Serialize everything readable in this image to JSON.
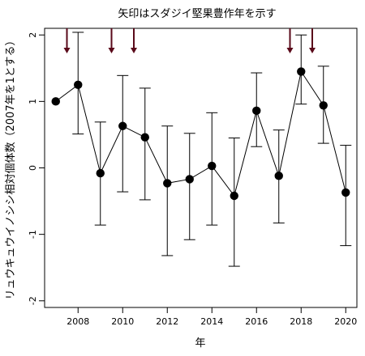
{
  "chart_data": {
    "type": "line",
    "title": "矢印はスダジイ堅果豊作年を示す",
    "xlabel": "年",
    "ylabel": "リュウキュウイノシシ相対個体数（2007年を1とする）",
    "xlim": [
      2006.5,
      2020.5
    ],
    "ylim": [
      -2.1,
      2.1
    ],
    "x_ticks": [
      2008,
      2010,
      2012,
      2014,
      2016,
      2018,
      2020
    ],
    "y_ticks": [
      -2,
      -1,
      0,
      1,
      2
    ],
    "series": [
      {
        "x": [
          2007,
          2008,
          2009,
          2010,
          2011,
          2012,
          2013,
          2014,
          2015,
          2016,
          2017,
          2018,
          2019,
          2020
        ],
        "y": [
          1.0,
          1.25,
          -0.08,
          0.63,
          0.46,
          -0.23,
          -0.17,
          0.03,
          -0.42,
          0.86,
          -0.12,
          1.45,
          0.94,
          -0.37
        ],
        "lower": [
          null,
          0.51,
          -0.86,
          -0.36,
          -0.48,
          -1.32,
          -1.08,
          -0.86,
          -1.48,
          0.32,
          -0.83,
          0.96,
          0.37,
          -1.17
        ],
        "upper": [
          null,
          2.04,
          0.69,
          1.39,
          1.2,
          0.63,
          0.52,
          0.83,
          0.45,
          1.43,
          0.57,
          2.0,
          1.53,
          0.34
        ]
      }
    ],
    "mast_years": [
      2007.5,
      2009.5,
      2010.5,
      2017.5,
      2018.5
    ],
    "arrow_color": "#5a0a1a",
    "grid": false,
    "legend": "none"
  }
}
